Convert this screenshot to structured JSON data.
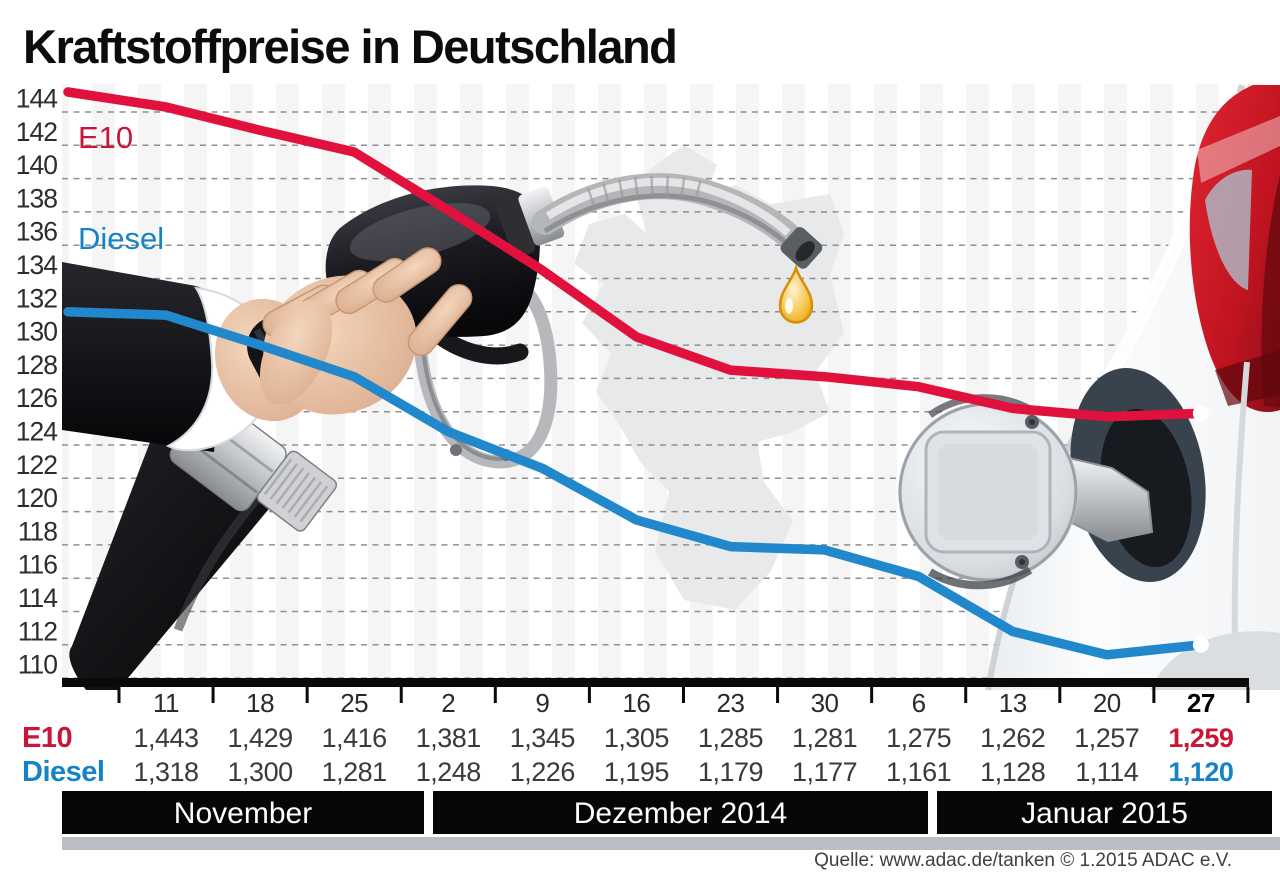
{
  "title": "Kraftstoffpreise in Deutschland",
  "legend": {
    "e10_label": "E10",
    "diesel_label": "Diesel"
  },
  "source": {
    "text": "Quelle: www.adac.de/tanken   © 1.2015  ADAC e.V."
  },
  "colors": {
    "e10_line": "#e1113d",
    "e10_text": "#c81538",
    "diesel_line": "#2189cb",
    "diesel_text": "#1583c5",
    "grid": "#8f8f8f",
    "axis": "#0a0a0a",
    "band_bg": "#060606",
    "band_text": "#ffffff",
    "gray_bar": "#b9bfc4",
    "map_fill": "#e8e9ea",
    "title_text": "#0c0c0c",
    "date_text": "#2a2a2a",
    "value_text": "#3a3a3a",
    "end_marker": "#ffffff"
  },
  "chart_data": {
    "type": "line",
    "title": "Kraftstoffpreise in Deutschland",
    "x_tick_labels": [
      "11",
      "18",
      "25",
      "2",
      "9",
      "16",
      "23",
      "30",
      "6",
      "13",
      "20",
      "27"
    ],
    "month_groups": [
      {
        "label": "November",
        "columns": [
          0,
          1,
          2
        ]
      },
      {
        "label": "Dezember 2014",
        "columns": [
          3,
          4,
          5,
          6,
          7
        ]
      },
      {
        "label": "Januar 2015",
        "columns": [
          8,
          9,
          10,
          11
        ]
      }
    ],
    "ylim": [
      110,
      144
    ],
    "y_tick_step": 2,
    "grid": true,
    "legend_position": "left-on-chart",
    "highlight_last_column": true,
    "series": [
      {
        "name": "E10",
        "color": "#e1113d",
        "values": [
          144.3,
          142.9,
          141.6,
          138.1,
          134.5,
          130.5,
          128.5,
          128.1,
          127.5,
          126.2,
          125.7,
          125.9
        ],
        "table_values": [
          "1,443",
          "1,429",
          "1,416",
          "1,381",
          "1,345",
          "1,305",
          "1,285",
          "1,281",
          "1,275",
          "1,262",
          "1,257",
          "1,259"
        ],
        "lead_in_value": 145.2,
        "end_marker": true
      },
      {
        "name": "Diesel",
        "color": "#2189cb",
        "values": [
          131.8,
          130.0,
          128.1,
          124.8,
          122.6,
          119.5,
          117.9,
          117.7,
          116.1,
          112.8,
          111.4,
          112.0
        ],
        "table_values": [
          "1,318",
          "1,300",
          "1,281",
          "1,248",
          "1,226",
          "1,195",
          "1,179",
          "1,177",
          "1,161",
          "1,128",
          "1,114",
          "1,120"
        ],
        "lead_in_value": 132.0,
        "end_marker": true
      }
    ]
  }
}
